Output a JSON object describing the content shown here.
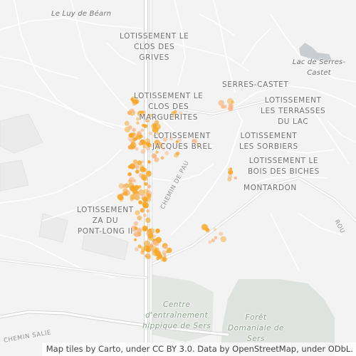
{
  "map": {
    "colors": {
      "background": "#f3f3f3",
      "road": "#ffffff",
      "road_casing": "#d6d6d6",
      "green_area": "#dfe3df",
      "water": "#c8cdd2",
      "heat_point": "#f5a623",
      "heat_point_faint": "#f8b98a"
    },
    "labels": {
      "luy_de_bearn": "Le Luy de Béarn",
      "clos_des_grives": "LOTISSEMENT LE\nCLOS DES\nGRIVES",
      "lac_serres": "Lac de Serres-Castet",
      "serres_castet": "SERRES-CASTET",
      "terrasses_du_lac": "LOTISSEMENT\nLES TERRASSES\nDU LAC",
      "clos_marguerites": "LOTISSEMENT LE\nCLOS DES\nMARGUERITES",
      "jacques_brel": "LOTISSEMENT\nJACQUES BREL",
      "les_sorbiers": "LOTISSEMENT\nLES SORBIERS",
      "bois_des_biches": "LOTISSEMENT LE\nBOIS DES BICHES",
      "montardon": "MONTARDON",
      "za_pont_long": "LOTISSEMENT\nZA DU\nPONT-LONG II",
      "chemin_de_pau": "CHEMIN DE PAU",
      "rou": "ROU",
      "centre_entrainement": "Centre\nd'entraînement\nhippique de Sers",
      "foret_domaniale": "Forêt\nDomaniale de\nSers",
      "chemin_salie": "CHEMIN SALIE"
    },
    "attribution": "Map tiles by Carto, under CC BY 3.0. Data by OpenStreetMap, under ODbL."
  }
}
